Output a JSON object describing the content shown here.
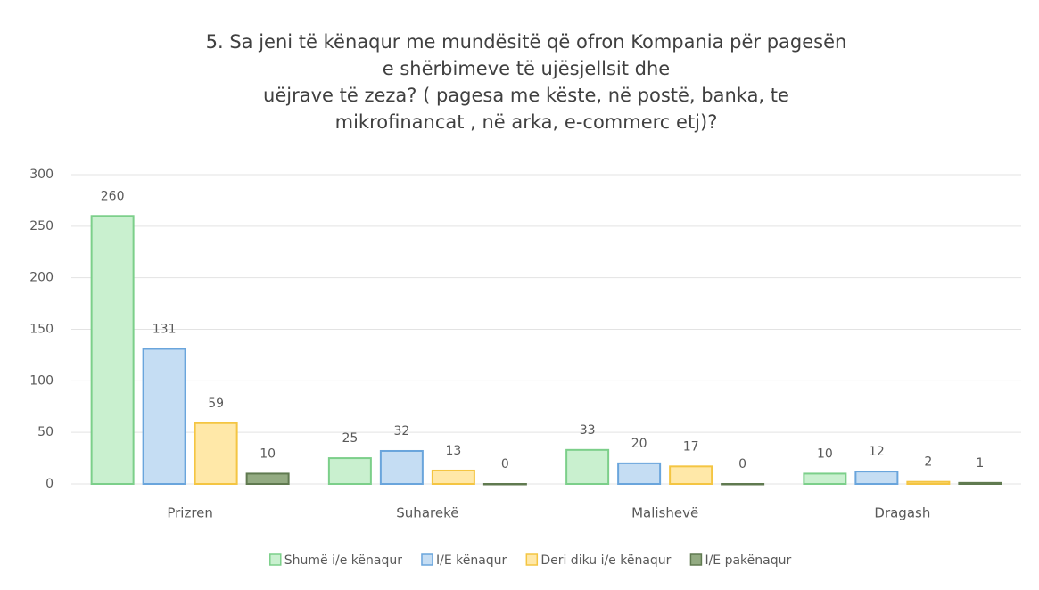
{
  "chart_data": {
    "type": "bar",
    "title": [
      "5. Sa jeni të kënaqur me mundësitë që ofron Kompania për pagesën",
      "e shërbimeve të ujësjellsit dhe",
      "uëjrave të zeza? ( pagesa me këste, në postë, banka, te",
      "mikrofinancat , në arka, e-commerc etj)?"
    ],
    "categories": [
      "Prizren",
      "Suharekë",
      "Malishevë",
      "Dragash"
    ],
    "series": [
      {
        "name": "Shumë i/e kënaqur",
        "color": "#c9f0cf",
        "edge_color": "#7ccf8a",
        "values": [
          260,
          25,
          33,
          10
        ]
      },
      {
        "name": "I/E kënaqur",
        "color": "#c5ddf3",
        "edge_color": "#6aa5dc",
        "values": [
          131,
          32,
          20,
          12
        ]
      },
      {
        "name": "Deri diku i/e kënaqur",
        "color": "#ffe8a8",
        "edge_color": "#f4c542",
        "values": [
          59,
          13,
          17,
          2
        ]
      },
      {
        "name": "I/E pakënaqur",
        "color": "#93ab82",
        "edge_color": "#607a50",
        "values": [
          10,
          0,
          0,
          1
        ]
      }
    ],
    "ylim": [
      0,
      300
    ],
    "yticks": [
      0,
      50,
      100,
      150,
      200,
      250,
      300
    ],
    "grid": true,
    "legend": "bottom"
  }
}
